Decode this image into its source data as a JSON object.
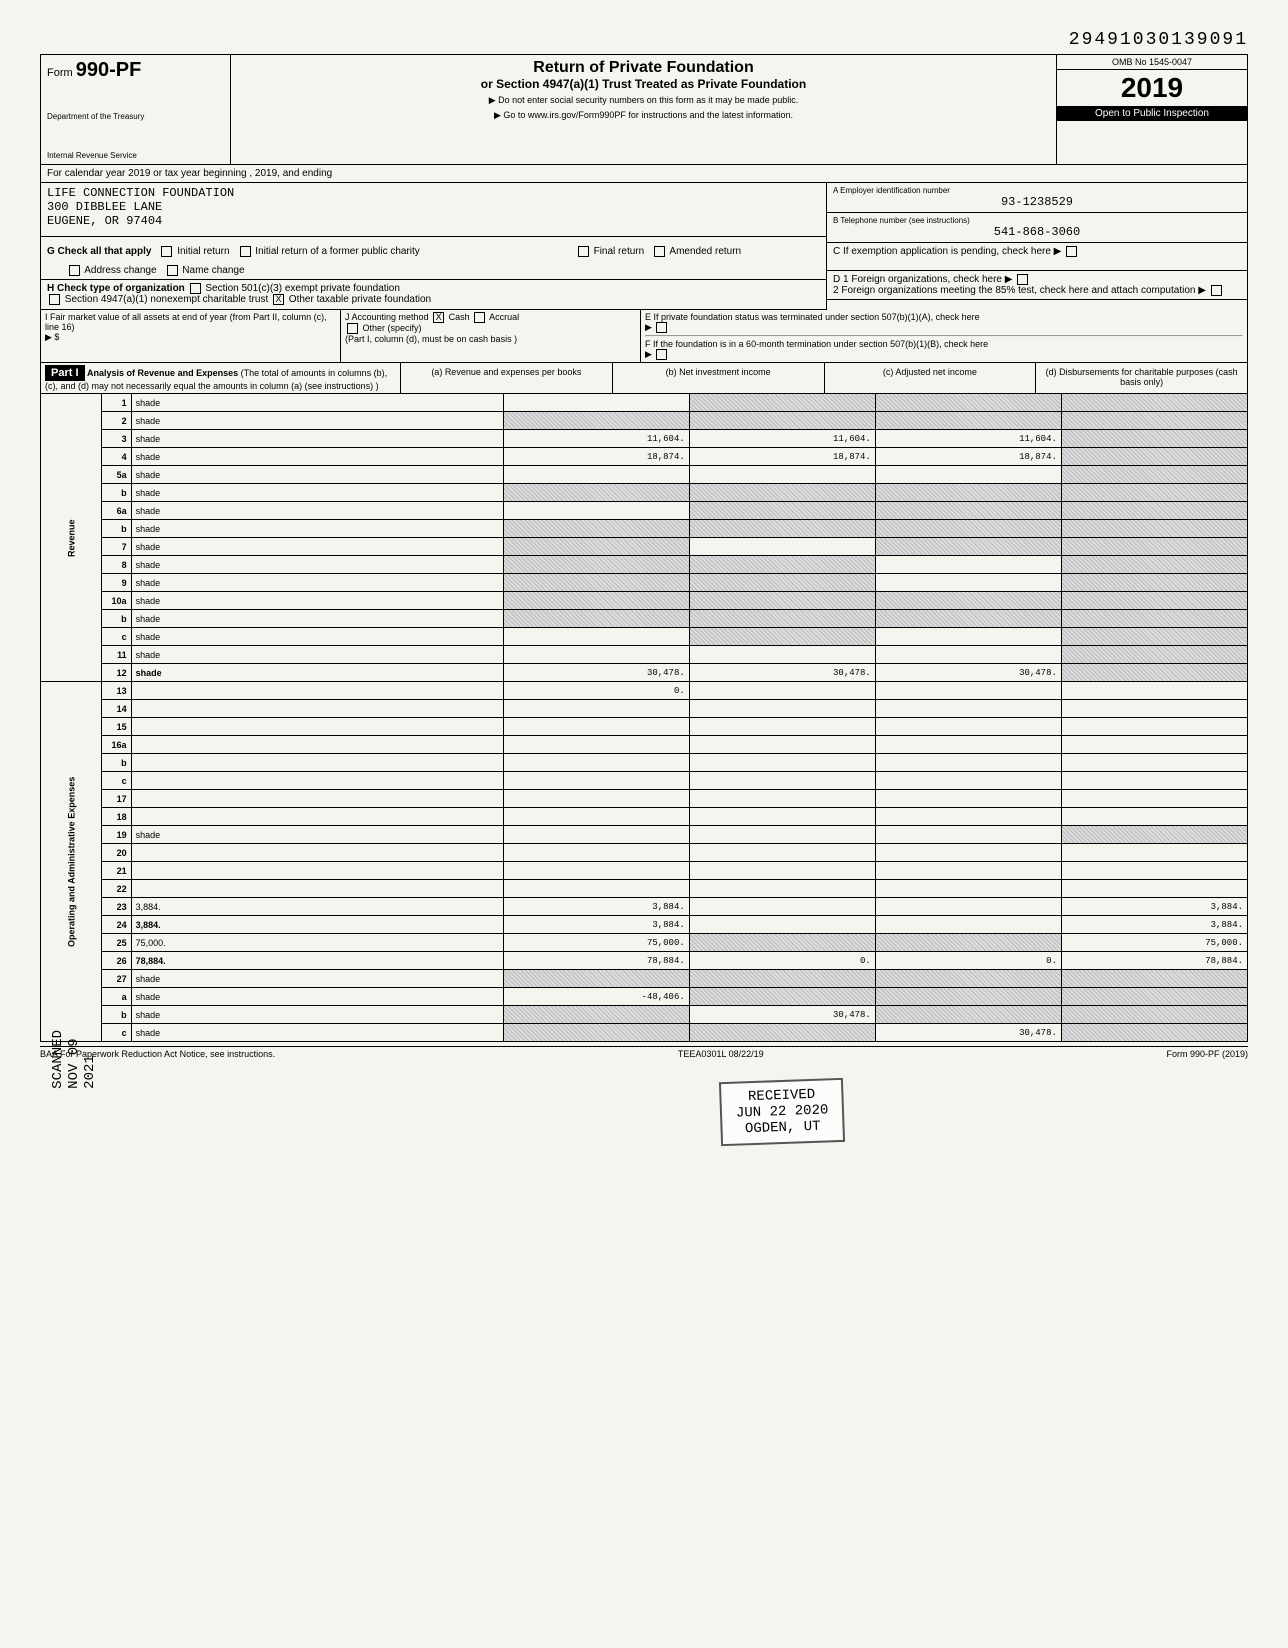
{
  "doc_number": "29491030139091",
  "form": {
    "prefix": "Form",
    "number": "990-PF",
    "dept1": "Department of the Treasury",
    "dept2": "Internal Revenue Service"
  },
  "titles": {
    "t1": "Return of Private Foundation",
    "t2": "or Section 4947(a)(1) Trust Treated as Private Foundation",
    "note1": "▶ Do not enter social security numbers on this form as it may be made public.",
    "note2": "▶ Go to www.irs.gov/Form990PF for instructions and the latest information."
  },
  "omb": "OMB No 1545-0047",
  "year": "2019",
  "inspection": "Open to Public Inspection",
  "calendar": "For calendar year 2019 or tax year beginning                    , 2019, and ending",
  "org": {
    "name": "LIFE CONNECTION FOUNDATION",
    "addr1": "300 DIBBLEE LANE",
    "addr2": "EUGENE, OR 97404"
  },
  "ein_label": "A   Employer identification number",
  "ein": "93-1238529",
  "phone_label": "B   Telephone number (see instructions)",
  "phone": "541-868-3060",
  "c_label": "C   If exemption application is pending, check here",
  "d1_label": "D 1 Foreign organizations, check here",
  "d2_label": "2 Foreign organizations meeting the 85% test, check here and attach computation",
  "e_label": "E   If private foundation status was terminated under section 507(b)(1)(A), check here",
  "f_label": "F   If the foundation is in a 60-month termination under section 507(b)(1)(B), check here",
  "g": {
    "label": "G   Check all that apply",
    "opts": [
      "Initial return",
      "Final return",
      "Address change",
      "Initial return of a former public charity",
      "Amended return",
      "Name change"
    ]
  },
  "h": {
    "label": "H   Check type of organization",
    "opt1": "Section 501(c)(3) exempt private foundation",
    "opt2": "Section 4947(a)(1) nonexempt charitable trust",
    "opt3": "Other taxable private foundation",
    "checked": "X"
  },
  "i": {
    "label": "I   Fair market value of all assets at end of year (from Part II, column (c), line 16)",
    "prefix": "▶ $"
  },
  "j": {
    "label": "J   Accounting method",
    "cash": "Cash",
    "accrual": "Accrual",
    "other": "Other (specify)",
    "note": "(Part I, column (d), must be on cash basis )",
    "checked": "X"
  },
  "part1": {
    "tag": "Part I",
    "title": "Analysis of Revenue and Expenses",
    "sub": "(The total of amounts in columns (b), (c), and (d) may not necessarily equal the amounts in column (a) (see instructions) )",
    "cols": {
      "a": "(a) Revenue and expenses per books",
      "b": "(b) Net investment income",
      "c": "(c) Adjusted net income",
      "d": "(d) Disbursements for charitable purposes (cash basis only)"
    }
  },
  "sections": {
    "revenue": "Revenue",
    "expenses": "Operating and Administrative Expenses"
  },
  "rows": [
    {
      "n": "1",
      "d": "shade",
      "a": "",
      "b": "shade",
      "c": "shade"
    },
    {
      "n": "2",
      "d": "shade",
      "a": "shade",
      "b": "shade",
      "c": "shade"
    },
    {
      "n": "3",
      "d": "shade",
      "a": "11,604.",
      "b": "11,604.",
      "c": "11,604."
    },
    {
      "n": "4",
      "d": "shade",
      "a": "18,874.",
      "b": "18,874.",
      "c": "18,874."
    },
    {
      "n": "5a",
      "d": "shade",
      "a": "",
      "b": "",
      "c": ""
    },
    {
      "n": "b",
      "d": "shade",
      "a": "shade",
      "b": "shade",
      "c": "shade"
    },
    {
      "n": "6a",
      "d": "shade",
      "a": "",
      "b": "shade",
      "c": "shade"
    },
    {
      "n": "b",
      "d": "shade",
      "a": "shade",
      "b": "shade",
      "c": "shade"
    },
    {
      "n": "7",
      "d": "shade",
      "a": "shade",
      "b": "",
      "c": "shade"
    },
    {
      "n": "8",
      "d": "shade",
      "a": "shade",
      "b": "shade",
      "c": ""
    },
    {
      "n": "9",
      "d": "shade",
      "a": "shade",
      "b": "shade",
      "c": ""
    },
    {
      "n": "10a",
      "d": "shade",
      "a": "shade",
      "b": "shade",
      "c": "shade"
    },
    {
      "n": "b",
      "d": "shade",
      "a": "shade",
      "b": "shade",
      "c": "shade"
    },
    {
      "n": "c",
      "d": "shade",
      "a": "",
      "b": "shade",
      "c": ""
    },
    {
      "n": "11",
      "d": "shade",
      "a": "",
      "b": "",
      "c": ""
    },
    {
      "n": "12",
      "d": "shade",
      "a": "30,478.",
      "b": "30,478.",
      "c": "30,478.",
      "bold": true
    },
    {
      "n": "13",
      "d": "",
      "a": "0.",
      "b": "",
      "c": ""
    },
    {
      "n": "14",
      "d": "",
      "a": "",
      "b": "",
      "c": ""
    },
    {
      "n": "15",
      "d": "",
      "a": "",
      "b": "",
      "c": ""
    },
    {
      "n": "16a",
      "d": "",
      "a": "",
      "b": "",
      "c": ""
    },
    {
      "n": "b",
      "d": "",
      "a": "",
      "b": "",
      "c": ""
    },
    {
      "n": "c",
      "d": "",
      "a": "",
      "b": "",
      "c": ""
    },
    {
      "n": "17",
      "d": "",
      "a": "",
      "b": "",
      "c": ""
    },
    {
      "n": "18",
      "d": "",
      "a": "",
      "b": "",
      "c": ""
    },
    {
      "n": "19",
      "d": "shade",
      "a": "",
      "b": "",
      "c": ""
    },
    {
      "n": "20",
      "d": "",
      "a": "",
      "b": "",
      "c": ""
    },
    {
      "n": "21",
      "d": "",
      "a": "",
      "b": "",
      "c": ""
    },
    {
      "n": "22",
      "d": "",
      "a": "",
      "b": "",
      "c": ""
    },
    {
      "n": "23",
      "d": "3,884.",
      "a": "3,884.",
      "b": "",
      "c": ""
    },
    {
      "n": "24",
      "d": "3,884.",
      "a": "3,884.",
      "b": "",
      "c": "",
      "bold": true
    },
    {
      "n": "25",
      "d": "75,000.",
      "a": "75,000.",
      "b": "shade",
      "c": "shade"
    },
    {
      "n": "26",
      "d": "78,884.",
      "a": "78,884.",
      "b": "0.",
      "c": "0.",
      "bold": true
    },
    {
      "n": "27",
      "d": "shade",
      "a": "shade",
      "b": "shade",
      "c": "shade"
    },
    {
      "n": "a",
      "d": "shade",
      "a": "-48,406.",
      "b": "shade",
      "c": "shade"
    },
    {
      "n": "b",
      "d": "shade",
      "a": "shade",
      "b": "30,478.",
      "c": "shade"
    },
    {
      "n": "c",
      "d": "shade",
      "a": "shade",
      "b": "shade",
      "c": "30,478."
    }
  ],
  "stamp": {
    "received": "RECEIVED",
    "date": "JUN 22 2020",
    "loc": "OGDEN, UT"
  },
  "side_stamp": "SCANNED NOV 09 2021",
  "footer": {
    "left": "BAA  For Paperwork Reduction Act Notice, see instructions.",
    "mid": "TEEA0301L  08/22/19",
    "right": "Form 990-PF (2019)"
  }
}
